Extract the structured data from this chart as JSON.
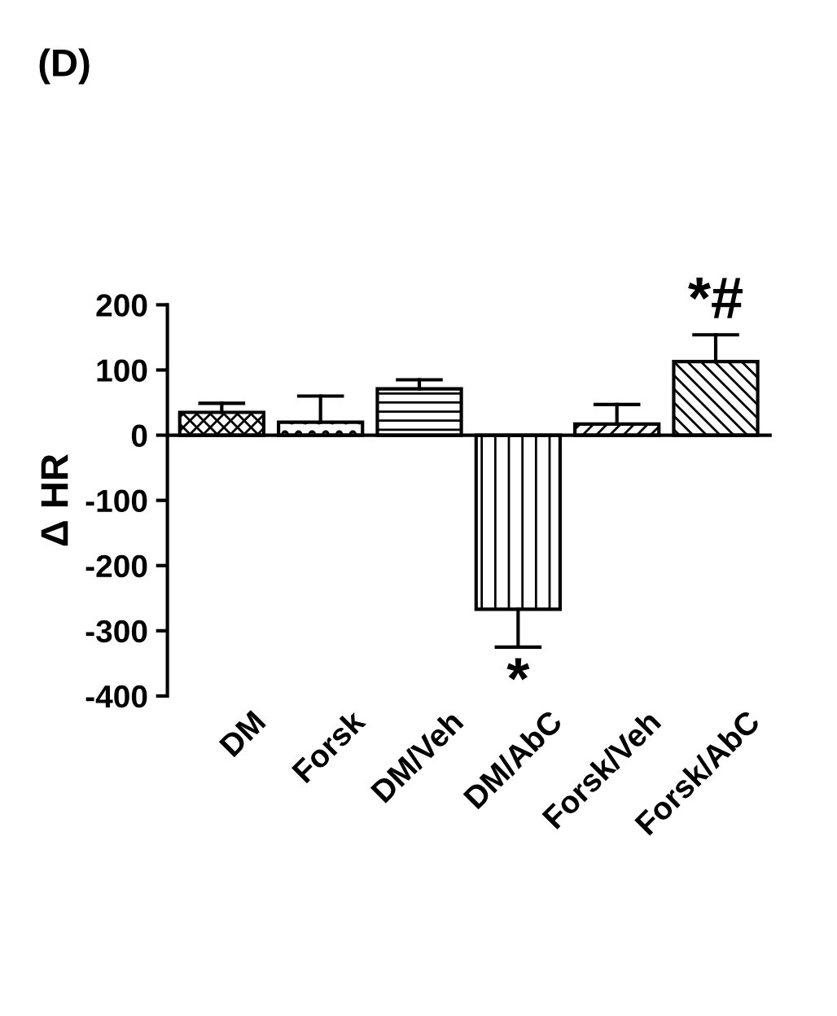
{
  "chart_data": {
    "type": "bar",
    "title": "(D)",
    "ylabel": "Δ HR",
    "categories": [
      "DM",
      "Forsk",
      "DM/Veh",
      "DM/AbC",
      "Forsk/Veh",
      "Forsk/AbC"
    ],
    "values": [
      35,
      20,
      71,
      -267,
      17,
      113
    ],
    "errors": [
      [
        35,
        49
      ],
      [
        20,
        60
      ],
      [
        71,
        85
      ],
      [
        -325,
        -267
      ],
      [
        17,
        47
      ],
      [
        113,
        154
      ]
    ],
    "ylim": [
      -400,
      200
    ],
    "yticks": [
      -400,
      -300,
      -200,
      -100,
      0,
      100,
      200
    ],
    "annotations": [
      {
        "text": "*",
        "x": "DM/AbC",
        "y": -325
      },
      {
        "text": "*#",
        "x": "Forsk/AbC",
        "y": 154
      }
    ],
    "legend": false
  }
}
